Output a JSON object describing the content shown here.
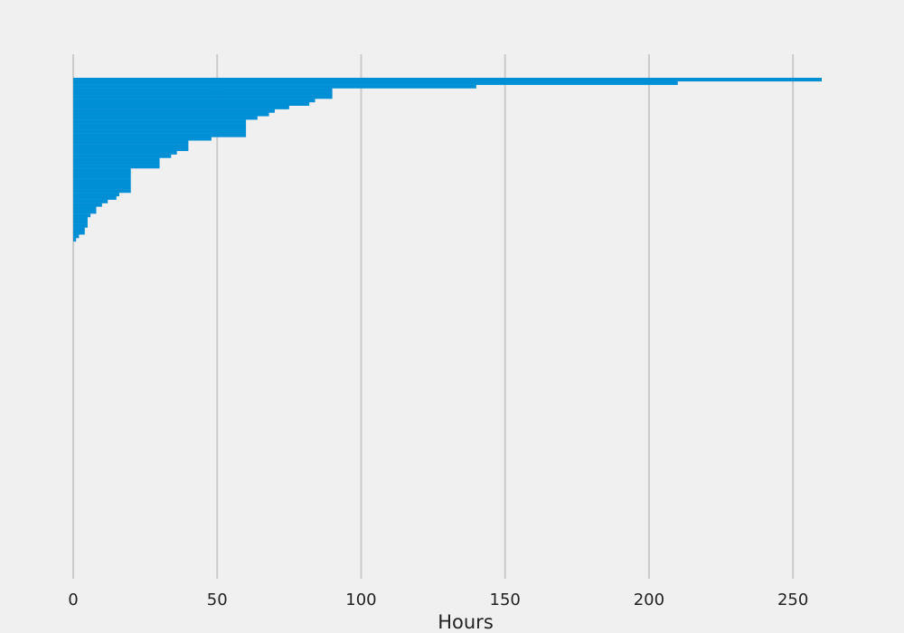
{
  "chart_data": {
    "type": "barh",
    "xlabel": "Hours",
    "color": "#008fd5",
    "categories": [
      null,
      null,
      null,
      null,
      null,
      null,
      null,
      null,
      null,
      null,
      null,
      null,
      null,
      null,
      null,
      null,
      null,
      null,
      null,
      null,
      null,
      null,
      null,
      null,
      null,
      null,
      null,
      null,
      null,
      null,
      null,
      null,
      null,
      null,
      null,
      null,
      null,
      null,
      null,
      null,
      null,
      null,
      null,
      null,
      null,
      null,
      null
    ],
    "values": [
      260,
      210,
      140,
      90,
      90,
      90,
      84,
      82,
      75,
      70,
      68,
      64,
      60,
      60,
      60,
      60,
      60,
      48,
      40,
      40,
      40,
      36,
      34,
      30,
      30,
      30,
      20,
      20,
      20,
      20,
      20,
      20,
      20,
      16,
      15,
      12,
      10,
      8,
      8,
      6,
      5,
      5,
      5,
      4,
      4,
      2,
      1
    ],
    "xlim": [
      0,
      260
    ],
    "xticks": [
      0,
      50,
      100,
      150,
      200,
      250
    ],
    "grid": true
  }
}
